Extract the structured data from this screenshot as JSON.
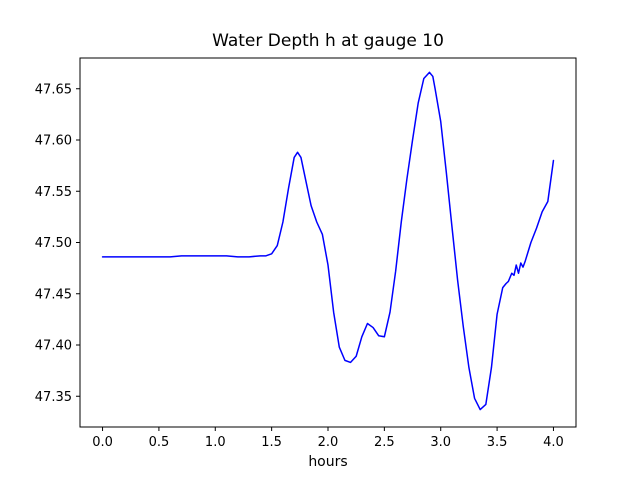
{
  "figure": {
    "title": "Water Depth h at gauge 10",
    "xlabel": "hours"
  },
  "chart_data": {
    "type": "line",
    "title": "Water Depth h at gauge 10",
    "xlabel": "hours",
    "ylabel": "",
    "line_color": "#0000ff",
    "background": "#ffffff",
    "grid": false,
    "legend": "none",
    "xlim": [
      -0.2,
      4.2
    ],
    "ylim": [
      47.32,
      47.68
    ],
    "xticks": [
      0.0,
      0.5,
      1.0,
      1.5,
      2.0,
      2.5,
      3.0,
      3.5,
      4.0
    ],
    "yticks": [
      47.35,
      47.4,
      47.45,
      47.5,
      47.55,
      47.6,
      47.65
    ],
    "x": [
      0.0,
      0.1,
      0.2,
      0.3,
      0.4,
      0.5,
      0.6,
      0.7,
      0.8,
      0.9,
      1.0,
      1.1,
      1.2,
      1.3,
      1.4,
      1.45,
      1.5,
      1.55,
      1.6,
      1.65,
      1.7,
      1.73,
      1.76,
      1.8,
      1.85,
      1.9,
      1.95,
      2.0,
      2.05,
      2.1,
      2.15,
      2.2,
      2.25,
      2.3,
      2.35,
      2.4,
      2.45,
      2.5,
      2.55,
      2.6,
      2.65,
      2.7,
      2.75,
      2.8,
      2.85,
      2.9,
      2.93,
      2.95,
      3.0,
      3.05,
      3.1,
      3.15,
      3.2,
      3.25,
      3.3,
      3.35,
      3.4,
      3.45,
      3.5,
      3.55,
      3.58,
      3.6,
      3.63,
      3.65,
      3.67,
      3.69,
      3.71,
      3.73,
      3.75,
      3.8,
      3.85,
      3.9,
      3.95,
      4.0
    ],
    "y": [
      47.486,
      47.486,
      47.486,
      47.486,
      47.486,
      47.486,
      47.486,
      47.487,
      47.487,
      47.487,
      47.487,
      47.487,
      47.486,
      47.486,
      47.487,
      47.487,
      47.489,
      47.497,
      47.52,
      47.553,
      47.583,
      47.588,
      47.583,
      47.562,
      47.536,
      47.52,
      47.508,
      47.478,
      47.432,
      47.398,
      47.385,
      47.383,
      47.389,
      47.408,
      47.421,
      47.417,
      47.409,
      47.408,
      47.432,
      47.472,
      47.52,
      47.562,
      47.6,
      47.636,
      47.66,
      47.666,
      47.662,
      47.65,
      47.618,
      47.568,
      47.515,
      47.463,
      47.418,
      47.378,
      47.348,
      47.337,
      47.342,
      47.378,
      47.43,
      47.456,
      47.46,
      47.462,
      47.47,
      47.468,
      47.478,
      47.47,
      47.48,
      47.476,
      47.482,
      47.5,
      47.514,
      47.53,
      47.54,
      47.58
    ]
  }
}
